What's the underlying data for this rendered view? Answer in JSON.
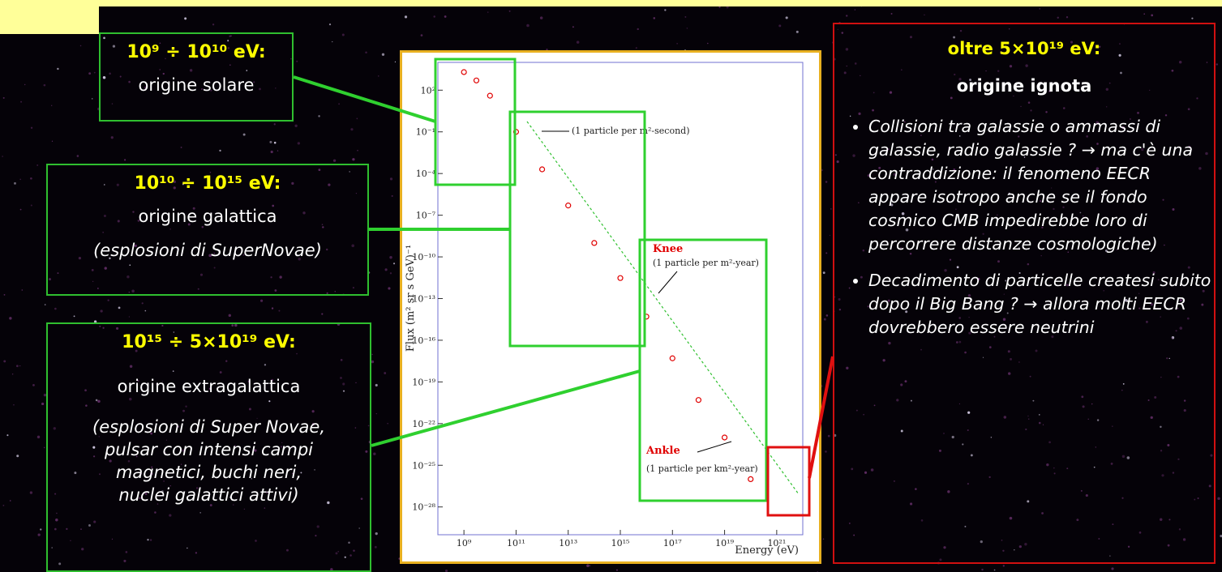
{
  "boxes": [
    {
      "title": "10⁹ ÷ 10¹⁰ eV:",
      "lines": [
        "origine solare"
      ]
    },
    {
      "title": "10¹⁰ ÷ 10¹⁵ eV:",
      "lines": [
        "origine galattica",
        "(esplosioni di SuperNovae)"
      ]
    },
    {
      "title": "10¹⁵ ÷ 5×10¹⁹ eV:",
      "lines": [
        "origine extragalattica",
        "(esplosioni di Super Novae,",
        "pulsar con intensi campi",
        "magnetici, buchi neri,",
        "nuclei galattici attivi)"
      ]
    }
  ],
  "right_box": {
    "title": "oltre  5×10¹⁹ eV:",
    "subtitle": "origine ignota",
    "bullets": [
      "Collisioni tra galassie o ammassi di galassie, radio galassie ? → ma c'è una contraddizione: il fenomeno EECR appare isotropo anche se il fondo cosmico CMB impedirebbe loro di percorrere distanze cosmologiche)",
      "Decadimento di particelle createsi subito dopo il Big Bang ? → allora molti EECR dovrebbero essere neutrini"
    ]
  },
  "chart_data": {
    "type": "scatter",
    "x_label": "Energy (eV)",
    "y_label": "Flux (m² sr s GeV)⁻¹",
    "log_x": true,
    "log_y": true,
    "color": "#e00000",
    "x": [
      1000000000,
      3000000000,
      10000000000,
      100000000000,
      1000000000000,
      10000000000000,
      100000000000000,
      1000000000000000,
      10000000000000000,
      100000000000000000,
      1000000000000000000,
      10000000000000000000,
      100000000000000000000
    ],
    "values": [
      2000,
      500,
      40,
      0.1,
      0.0002,
      5e-07,
      1e-09,
      3e-12,
      5e-15,
      5e-18,
      5e-21,
      1e-23,
      1e-26
    ],
    "xlim": [
      100000000,
      10000000000000000000000
    ],
    "ylim": [
      1e-30,
      10000
    ],
    "xticks": [
      {
        "value": 1000000000,
        "label": "10⁹"
      },
      {
        "value": 100000000000,
        "label": "10¹¹"
      },
      {
        "value": 10000000000000,
        "label": "10¹³"
      },
      {
        "value": 1000000000000000,
        "label": "10¹⁵"
      },
      {
        "value": 100000000000000000,
        "label": "10¹⁷"
      },
      {
        "value": 10000000000000000000,
        "label": "10¹⁹"
      },
      {
        "value": 1000000000000000000000,
        "label": "10²¹"
      }
    ],
    "yticks": [
      {
        "value": 100,
        "label": "10²"
      },
      {
        "value": 0.1,
        "label": "10⁻¹"
      },
      {
        "value": 0.0001,
        "label": "10⁻⁴"
      },
      {
        "value": 1e-07,
        "label": "10⁻⁷"
      },
      {
        "value": 1e-10,
        "label": "10⁻¹⁰"
      },
      {
        "value": 1e-13,
        "label": "10⁻¹³"
      },
      {
        "value": 1e-16,
        "label": "10⁻¹⁶"
      },
      {
        "value": 1e-19,
        "label": "10⁻¹⁹"
      },
      {
        "value": 1e-22,
        "label": "10⁻²²"
      },
      {
        "value": 1e-25,
        "label": "10⁻²⁵"
      },
      {
        "value": 1e-28,
        "label": "10⁻²⁸"
      }
    ],
    "annotations": [
      "(1 particle per m²-second)",
      "Knee",
      "(1 particle per m²-year)",
      "Ankle",
      "(1 particle per km²-year)"
    ]
  }
}
